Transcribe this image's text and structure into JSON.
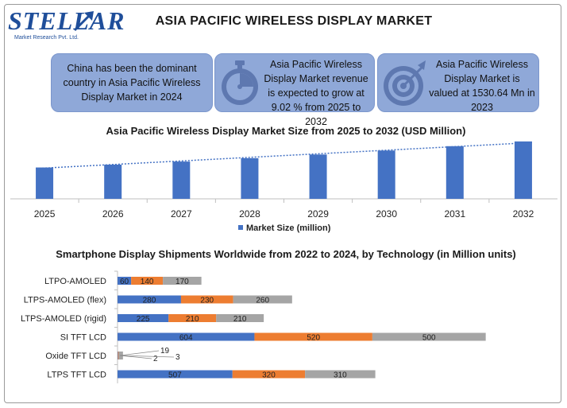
{
  "brand": {
    "name": "STELLAR",
    "tagline": "Market Research Pvt. Ltd."
  },
  "title": "ASIA PACIFIC WIRELESS DISPLAY MARKET",
  "info": [
    {
      "text": "China has been the dominant country in Asia Pacific Wireless Display Market in 2024",
      "icon": "none"
    },
    {
      "text": "Asia Pacific Wireless Display Market revenue is expected to grow at 9.02 % from 2025 to 2032",
      "icon": "stopwatch-icon"
    },
    {
      "text": "Asia Pacific Wireless Display Market is valued at 1530.64 Mn in 2023",
      "icon": "target-icon"
    }
  ],
  "colors": {
    "bar": "#4472c4",
    "orange": "#ed7d31",
    "gray": "#a5a5a5",
    "box": "#8fa8d8",
    "trend": "#4472c4"
  },
  "chart_data": [
    {
      "type": "bar",
      "title": "Asia Pacific Wireless Display Market Size from 2025 to 2032 (USD Million)",
      "categories": [
        "2025",
        "2026",
        "2027",
        "2028",
        "2029",
        "2030",
        "2031",
        "2032"
      ],
      "series": [
        {
          "name": "Market Size (million)",
          "values": [
            1668,
            1819,
            1983,
            2162,
            2357,
            2569,
            2801,
            3054
          ]
        }
      ],
      "trendline": "linear",
      "legend": "bottom",
      "grid": false,
      "ylim": [
        0,
        3300
      ]
    },
    {
      "type": "bar",
      "orientation": "horizontal",
      "stacked": true,
      "title": "Smartphone Display Shipments Worldwide from 2022 to 2024, by Technology (in Million units)",
      "categories": [
        "LTPO-AMOLED",
        "LTPS-AMOLED (flex)",
        "LTPS-AMOLED (rigid)",
        "SI TFT LCD",
        "Oxide TFT LCD",
        "LTPS TFT LCD"
      ],
      "series": [
        {
          "values": [
            60,
            280,
            225,
            604,
            2,
            507
          ]
        },
        {
          "values": [
            140,
            230,
            210,
            520,
            3,
            320
          ]
        },
        {
          "values": [
            170,
            260,
            210,
            500,
            19,
            310
          ]
        }
      ],
      "grid": false,
      "legend": "none"
    }
  ]
}
